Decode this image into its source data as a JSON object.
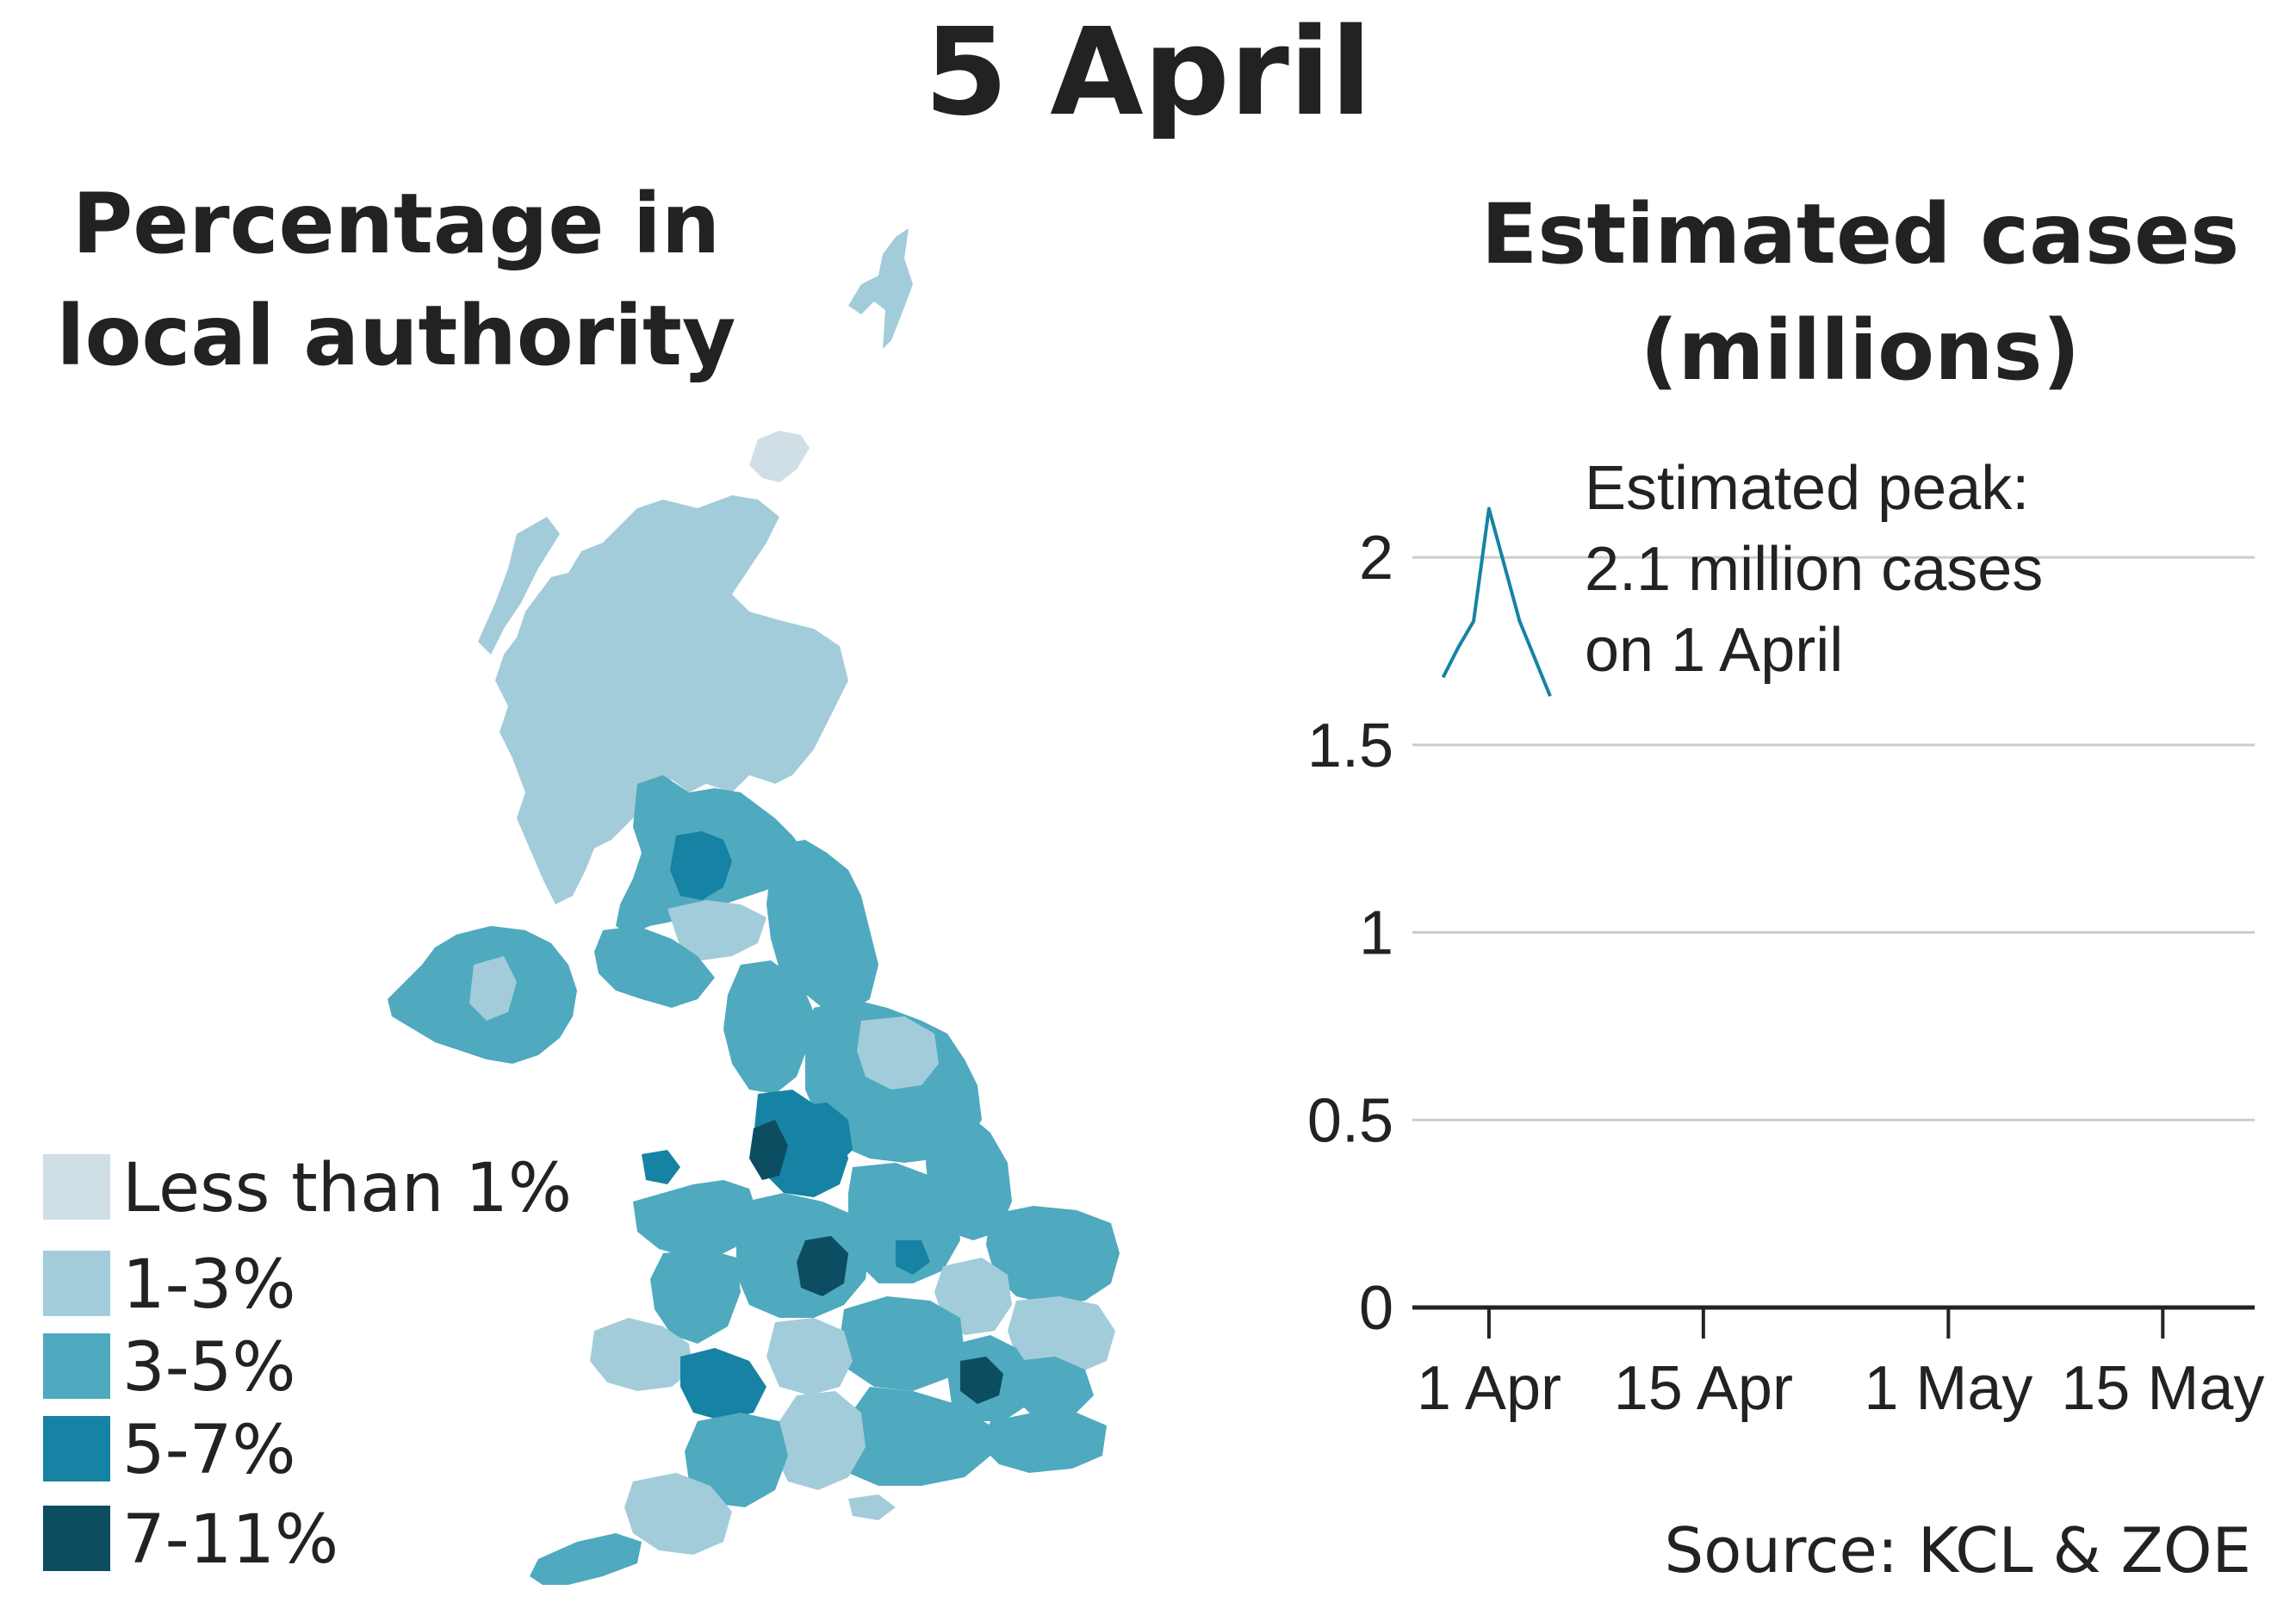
{
  "title": "5 April",
  "map": {
    "title_line1": "Percentage in",
    "title_line2": "local authority",
    "legend": [
      {
        "label": "Less than 1%",
        "color": "#d0dfe5"
      },
      {
        "label": "1-3%",
        "color": "#a2ccda"
      },
      {
        "label": "3-5%",
        "color": "#4fa9bf"
      },
      {
        "label": "5-7%",
        "color": "#1682a4"
      },
      {
        "label": "7-11%",
        "color": "#0d4d62"
      }
    ]
  },
  "chart": {
    "title_line1": "Estimated cases",
    "title_line2": "(millions)",
    "annotation_lines": [
      "Estimated peak:",
      "2.1 million cases",
      "on 1 April"
    ],
    "source": "Source: KCL & ZOE"
  },
  "chart_data": {
    "type": "line",
    "title": "Estimated cases (millions)",
    "x_tick_labels": [
      "1 Apr",
      "15 Apr",
      "1 May",
      "15 May"
    ],
    "x_tick_dates": [
      "2022-04-01",
      "2022-04-15",
      "2022-05-01",
      "2022-05-15"
    ],
    "xlim": [
      "2022-03-27",
      "2022-05-21"
    ],
    "y_ticks": [
      0,
      0.5,
      1,
      1.5,
      2
    ],
    "ylim": [
      0,
      2.2
    ],
    "grid": true,
    "series": [
      {
        "color": "#1682a4",
        "x": [
          "2022-03-29",
          "2022-03-30",
          "2022-03-31",
          "2022-04-01",
          "2022-04-02",
          "2022-04-03",
          "2022-04-04",
          "2022-04-05"
        ],
        "y": [
          1.68,
          1.76,
          1.83,
          2.13,
          1.98,
          1.83,
          1.73,
          1.63
        ]
      }
    ]
  }
}
